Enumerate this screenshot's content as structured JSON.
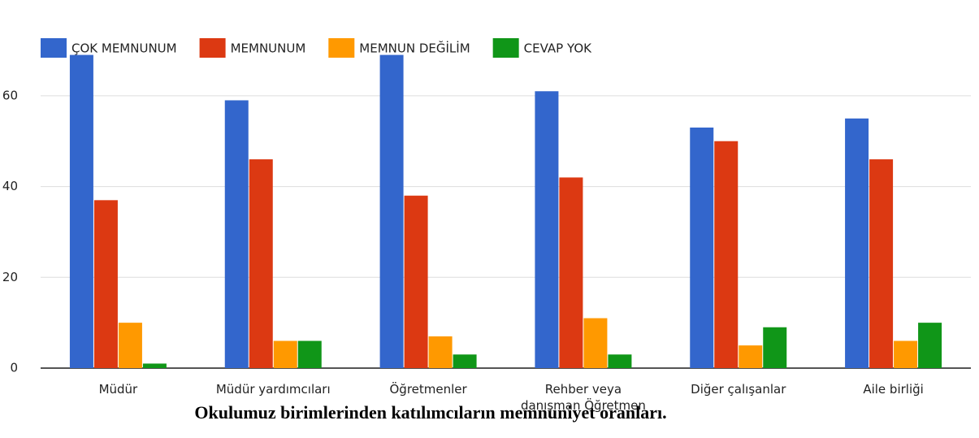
{
  "chart_data": {
    "type": "bar",
    "title": "Okulumuz  birimlerinden katılımcıların memnuniyet oranları.",
    "categories": [
      "Müdür",
      "Müdür yardımcıları",
      "Öğretmenler",
      "Rehber veya\ndanışman Öğretmen",
      "Diğer çalışanlar",
      "Aile birliği"
    ],
    "series": [
      {
        "name": "ÇOK MEMNUNUM",
        "color": "#3366cc",
        "values": [
          69,
          59,
          69,
          61,
          53,
          55
        ]
      },
      {
        "name": "MEMNUNUM",
        "color": "#dc3912",
        "values": [
          37,
          46,
          38,
          42,
          50,
          46
        ]
      },
      {
        "name": "MEMNUN DEĞİLİM",
        "color": "#ff9900",
        "values": [
          10,
          6,
          7,
          11,
          5,
          6
        ]
      },
      {
        "name": "CEVAP YOK",
        "color": "#109618",
        "values": [
          1,
          6,
          3,
          3,
          9,
          10
        ]
      }
    ],
    "ylim": [
      0,
      70
    ],
    "yticks": [
      0,
      20,
      40,
      60
    ],
    "grid": true,
    "legend": "top"
  }
}
